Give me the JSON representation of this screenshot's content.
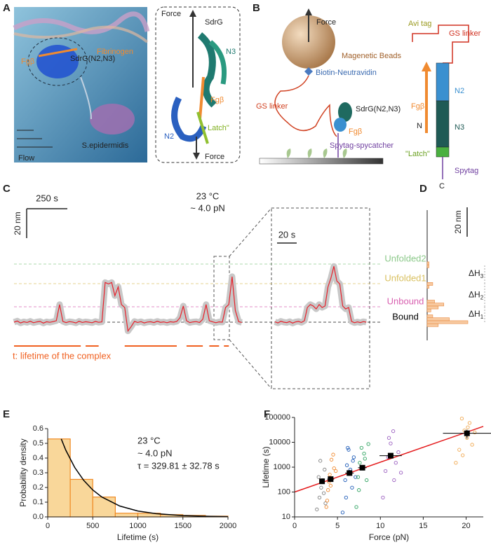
{
  "panel_a": {
    "label": "A",
    "fibrinogen": "Fibrinogen",
    "fgb": "Fgβ",
    "sdrg": "SdrG(N2,N3)",
    "bacterium": "S.epidermidis",
    "flow": "Flow",
    "inset": {
      "force_top": "Force",
      "sdrg": "SdrG",
      "n3": "N3",
      "fgb": "Fgβ",
      "n2": "N2",
      "latch": "Latch\"",
      "force_bottom": "Force"
    }
  },
  "panel_b": {
    "label": "B",
    "force": "Force",
    "beads": "Magenetic Beads",
    "biotin": "Biotin-Neutravidin",
    "gs_linker": "GS linker",
    "sdrg": "SdrG(N2,N3)",
    "fgb": "Fgβ",
    "spytag_spycatcher": "Spytag-spycatcher",
    "construct": {
      "avi_tag": "Avi tag",
      "gs_linker": "GS linker",
      "fgb": "Fgβ",
      "n_term": "N",
      "n2": "N2",
      "n3": "N3",
      "latch": "\"Latch\"",
      "spytag": "Spytag",
      "c_term": "C"
    }
  },
  "chart_data": [
    {
      "type": "trace",
      "label": "C",
      "color": "#e8202a",
      "scale_bar_x": {
        "value": 250,
        "label": "250 s"
      },
      "scale_bar_y": {
        "value": 20,
        "label": "20 nm"
      },
      "temperature": "23 °C",
      "force": "~ 4.0 pN",
      "x": [
        0,
        20,
        40,
        60,
        80,
        100,
        120,
        140,
        160,
        180,
        200,
        220,
        240,
        260,
        280,
        300,
        320,
        340,
        360,
        380,
        400,
        420,
        440,
        460,
        480,
        500,
        520,
        540,
        560,
        580,
        600,
        620,
        640,
        660,
        680,
        700,
        720,
        740,
        760,
        780,
        800,
        820,
        840,
        860,
        880,
        900,
        920,
        940,
        960,
        980,
        1000,
        1020,
        1040,
        1060,
        1080,
        1100,
        1120,
        1140,
        1160,
        1180,
        1200,
        1220,
        1240,
        1260,
        1280,
        1300,
        1320,
        1340,
        1360,
        1380,
        1400
      ],
      "values": [
        0,
        0.8,
        -0.5,
        0.3,
        -0.2,
        0.6,
        -0.4,
        0.2,
        0.5,
        -0.6,
        0.3,
        -0.1,
        0.4,
        1,
        12,
        0.5,
        -0.3,
        0.4,
        0.1,
        -0.5,
        0.6,
        -0.2,
        0.3,
        0,
        -0.4,
        0.5,
        -0.1,
        0.2,
        27,
        26,
        27,
        18,
        24,
        12,
        10,
        -6,
        -3,
        0.5,
        -0.2,
        0.4,
        -0.5,
        0.1,
        0.3,
        -0.3,
        0.6,
        -0.1,
        0.2,
        -0.4,
        0.3,
        0,
        0.5,
        3,
        11,
        1,
        -0.3,
        0.2,
        0.4,
        -0.2,
        2,
        12,
        1,
        0.3,
        -0.4,
        0.2,
        0,
        10,
        12,
        31,
        8,
        0.4,
        -0.2
      ],
      "zoom": {
        "scale_bar_x": {
          "value": 20,
          "label": "20 s"
        },
        "x": [
          0,
          3,
          6,
          9,
          12,
          15,
          18,
          21,
          24,
          27,
          30,
          33,
          36,
          39,
          42,
          45,
          48,
          51,
          54,
          57,
          60,
          63,
          66,
          69,
          72,
          75,
          78,
          81,
          84,
          87,
          90,
          93
        ],
        "values": [
          0.3,
          -0.5,
          0.6,
          0,
          -0.3,
          0.4,
          -0.6,
          0.2,
          0.5,
          -0.2,
          1,
          10,
          12,
          11,
          9,
          12,
          10,
          11,
          24,
          30,
          38,
          28,
          26,
          11,
          9,
          10,
          0.5,
          -0.4,
          0.2,
          -0.3,
          0.4,
          0
        ]
      },
      "levels": [
        {
          "name": "Unfolded2",
          "value": 39.5,
          "color": "#8cc98a"
        },
        {
          "name": "Unfolded1",
          "value": 26.2,
          "color": "#d9c060"
        },
        {
          "name": "Unbound",
          "value": 10.5,
          "color": "#d860b0"
        },
        {
          "name": "Bound",
          "value": 0,
          "color": "#000000"
        }
      ],
      "lifetimes": [
        [
          0,
          410
        ],
        [
          440,
          520
        ],
        [
          680,
          1000
        ],
        [
          1060,
          1160
        ],
        [
          1200,
          1260
        ],
        [
          1290,
          1320
        ]
      ],
      "lifetime_label": "t: lifetime of the complex"
    },
    {
      "type": "barh",
      "label": "D",
      "color": "#f7c9a0",
      "edge_color": "#e88a40",
      "scale_bar_y": {
        "value": 20,
        "label": "20 nm"
      },
      "y": [
        -2,
        0,
        2,
        4,
        8,
        10,
        12,
        14,
        24,
        26,
        38,
        40
      ],
      "values": [
        6,
        22,
        12,
        3,
        2,
        6,
        9,
        4,
        1,
        3,
        1,
        1
      ],
      "delta_labels": [
        {
          "base": "ΔH",
          "sub": "1"
        },
        {
          "base": "ΔH",
          "sub": "2"
        },
        {
          "base": "ΔH",
          "sub": "3"
        }
      ]
    },
    {
      "type": "histogram",
      "label": "E",
      "color": "#f9d79a",
      "edge_color": "#f08a24",
      "bins": [
        0,
        250,
        500,
        750,
        1000,
        1250,
        1500,
        1750,
        2000
      ],
      "values": [
        0.53,
        0.255,
        0.135,
        0.025,
        0.025,
        0.015,
        0.01,
        0.005
      ],
      "fit": {
        "color": "#000000",
        "x": [
          150,
          200,
          300,
          400,
          500,
          600,
          800,
          1000,
          1200,
          1500,
          1800,
          2000
        ],
        "y": [
          0.53,
          0.455,
          0.336,
          0.248,
          0.183,
          0.135,
          0.074,
          0.04,
          0.022,
          0.009,
          0.0036,
          0.002
        ]
      },
      "annotations": [
        "23 °C",
        "~ 4.0 pN",
        "τ = 329.81 ± 32.78 s"
      ],
      "xlabel": "Lifetime (s)",
      "ylabel": "Probability density",
      "xlim": [
        0,
        2000
      ],
      "xticks": [
        0,
        500,
        1000,
        1500,
        2000
      ],
      "ylim": [
        0,
        0.6
      ],
      "yticks": [
        {
          "value": 0,
          "label": "0.0"
        },
        0.1,
        0.2,
        0.3,
        0.4,
        0.5,
        0.6
      ]
    },
    {
      "type": "scatter",
      "label": "F",
      "log_y": true,
      "xlabel": "Force (pN)",
      "ylabel": "Lifetime (s)",
      "xlim": [
        0,
        22
      ],
      "xticks": [
        0,
        5,
        10,
        15,
        20
      ],
      "ylim": [
        10,
        100000
      ],
      "yticks": [
        10,
        100,
        1000,
        10000,
        100000
      ],
      "series": [
        {
          "color": "#808080",
          "x": [
            2.6,
            2.9,
            3.1,
            3.3,
            3.5,
            3.0,
            2.8,
            3.4,
            3.2,
            3.6
          ],
          "values": [
            20,
            60,
            150,
            300,
            800,
            1800,
            400,
            90,
            250,
            35
          ]
        },
        {
          "color": "#f08a30",
          "x": [
            3.7,
            3.9,
            4.1,
            4.3,
            4.5,
            4.0,
            4.8,
            3.8,
            4.2,
            4.6
          ],
          "values": [
            25,
            120,
            500,
            2000,
            3200,
            260,
            700,
            45,
            180,
            900
          ]
        },
        {
          "color": "#1f5cb8",
          "x": [
            5.6,
            5.9,
            6.1,
            6.3,
            6.5,
            6.7,
            6.9,
            7.1,
            6.0,
            6.4,
            6.8,
            6.2
          ],
          "values": [
            15,
            300,
            1200,
            5000,
            800,
            150,
            2500,
            400,
            60,
            650,
            1800,
            6000
          ]
        },
        {
          "color": "#2ca25f",
          "x": [
            7.2,
            7.4,
            7.6,
            7.8,
            8.0,
            8.2,
            8.4,
            8.6,
            7.5,
            8.1
          ],
          "values": [
            25,
            400,
            1500,
            6000,
            900,
            2200,
            300,
            8500,
            120,
            3500
          ]
        },
        {
          "color": "#9b5fc0",
          "x": [
            10.3,
            10.6,
            10.9,
            11.2,
            11.5,
            11.8,
            12.1,
            12.4,
            11.0,
            11.6
          ],
          "values": [
            60,
            700,
            2500,
            9000,
            28000,
            1500,
            4000,
            600,
            15000,
            300
          ]
        },
        {
          "color": "#f0a850",
          "x": [
            18.8,
            19.2,
            19.5,
            19.8,
            20.1,
            20.4,
            20.7,
            21.0,
            19.6,
            20.2
          ],
          "values": [
            1500,
            5000,
            90000,
            30000,
            15000,
            60000,
            8000,
            25000,
            3000,
            40000
          ]
        }
      ],
      "means": {
        "color": "#000000",
        "x": [
          3.2,
          4.2,
          6.4,
          7.9,
          11.2,
          20.1
        ],
        "values": [
          270,
          330,
          580,
          950,
          2900,
          23000
        ],
        "xerr": [
          0.3,
          0.4,
          0.5,
          0.5,
          1.3,
          2.8
        ],
        "yerr": [
          40,
          40,
          80,
          150,
          600,
          9000
        ]
      },
      "fit": {
        "color": "#e41a1c",
        "x": [
          0,
          22
        ],
        "values": [
          100,
          43650
        ]
      }
    }
  ]
}
